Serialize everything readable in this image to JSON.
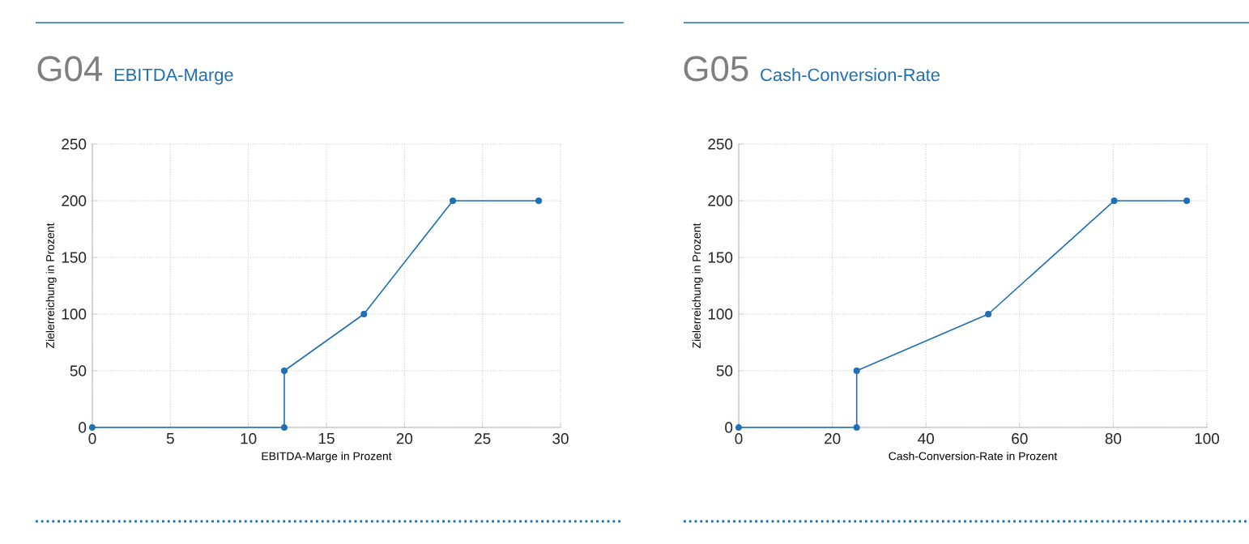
{
  "chart_data": [
    {
      "type": "line",
      "title": "G04",
      "subtitle": "EBITDA-Marge",
      "xlabel": "EBITDA-Marge in Prozent",
      "ylabel": "Zielerreichung in Prozent",
      "x": [
        0,
        12.3,
        12.3,
        17.4,
        23.1,
        28.6
      ],
      "values": [
        0,
        0,
        50,
        100,
        200,
        200
      ],
      "color": "#1f6fb5",
      "xlim": [
        0,
        30
      ],
      "xticks": [
        0,
        5,
        10,
        15,
        20,
        25,
        30
      ],
      "ylim": [
        0,
        250
      ],
      "yticks": [
        0,
        50,
        100,
        150,
        200,
        250
      ],
      "grid": true,
      "marker": "circle"
    },
    {
      "type": "line",
      "title": "G05",
      "subtitle": "Cash-Conversion-Rate",
      "xlabel": "Cash-Conversion-Rate in Prozent",
      "ylabel": "Zielerreichung in Prozent",
      "x": [
        0,
        25.2,
        25.2,
        53.3,
        80.2,
        95.7
      ],
      "values": [
        0,
        0,
        50,
        100,
        200,
        200
      ],
      "color": "#1f6fb5",
      "xlim": [
        0,
        100
      ],
      "xticks": [
        0,
        20,
        40,
        60,
        80,
        100
      ],
      "ylim": [
        0,
        250
      ],
      "yticks": [
        0,
        50,
        100,
        150,
        200,
        250
      ],
      "grid": true,
      "marker": "circle"
    }
  ]
}
